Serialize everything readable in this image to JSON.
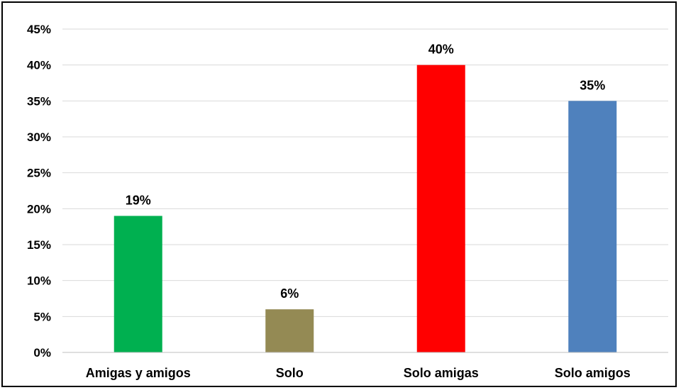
{
  "chart_data": {
    "type": "bar",
    "categories": [
      "Amigas y amigos",
      "Solo",
      "Solo amigas",
      "Solo amigos"
    ],
    "values": [
      19,
      6,
      40,
      35
    ],
    "data_labels": [
      "19%",
      "6%",
      "40%",
      "35%"
    ],
    "colors": [
      "#00b050",
      "#948a54",
      "#ff0000",
      "#4f81bd"
    ],
    "title": "",
    "xlabel": "",
    "ylabel": "",
    "ylim": [
      0,
      45
    ],
    "yticks": [
      0,
      5,
      10,
      15,
      20,
      25,
      30,
      35,
      40,
      45
    ],
    "ytick_labels": [
      "0%",
      "5%",
      "10%",
      "15%",
      "20%",
      "25%",
      "30%",
      "35%",
      "40%",
      "45%"
    ],
    "grid": true,
    "legend": "none"
  }
}
